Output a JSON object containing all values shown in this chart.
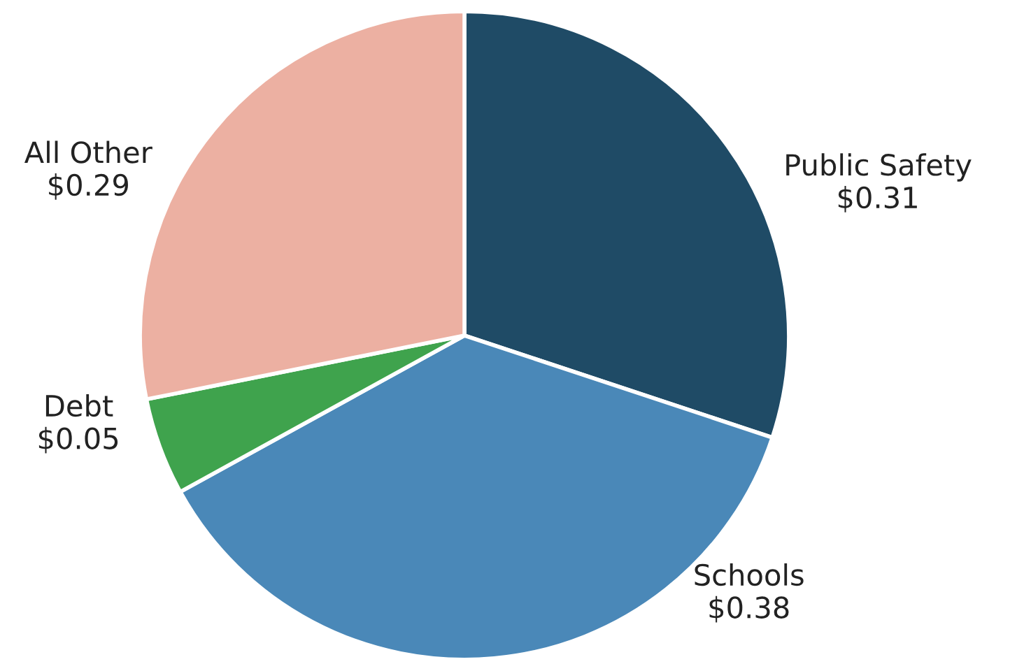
{
  "chart_data": {
    "type": "pie",
    "categories": [
      "Public Safety",
      "Schools",
      "Debt",
      "All Other"
    ],
    "values": [
      0.31,
      0.38,
      0.05,
      0.29
    ],
    "value_labels": [
      "$0.31",
      "$0.38",
      "$0.05",
      "$0.29"
    ],
    "colors": [
      "#1f4b66",
      "#4a88b8",
      "#3fa34d",
      "#ecb0a2"
    ]
  }
}
